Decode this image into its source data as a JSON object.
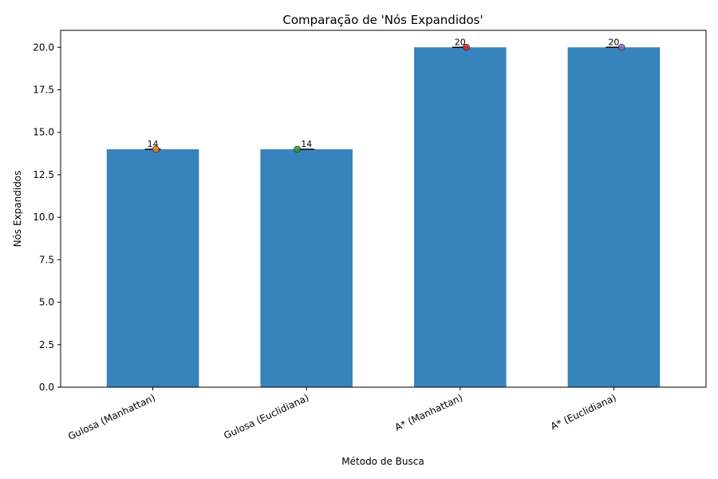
{
  "chart_data": {
    "type": "bar",
    "title": "Comparação de 'Nós Expandidos'",
    "xlabel": "Método de Busca",
    "ylabel": "Nós Expandidos",
    "categories": [
      "Gulosa (Manhattan)",
      "Gulosa (Euclidiana)",
      "A* (Manhattan)",
      "A* (Euclidiana)"
    ],
    "values": [
      14,
      14,
      20,
      20
    ],
    "data_labels": [
      "14",
      "14",
      "20",
      "20"
    ],
    "ylim": [
      0,
      21
    ],
    "yticks": [
      0.0,
      2.5,
      5.0,
      7.5,
      10.0,
      12.5,
      15.0,
      17.5,
      20.0
    ],
    "ytick_labels": [
      "0.0",
      "2.5",
      "5.0",
      "7.5",
      "10.0",
      "12.5",
      "15.0",
      "17.5",
      "20.0"
    ],
    "grid": false,
    "bar_color": "#3783bb",
    "point_colors": [
      "#ff7f0e",
      "#2ca02c",
      "#d62728",
      "#9467bd"
    ],
    "point_values": [
      14,
      14,
      20,
      20
    ]
  }
}
